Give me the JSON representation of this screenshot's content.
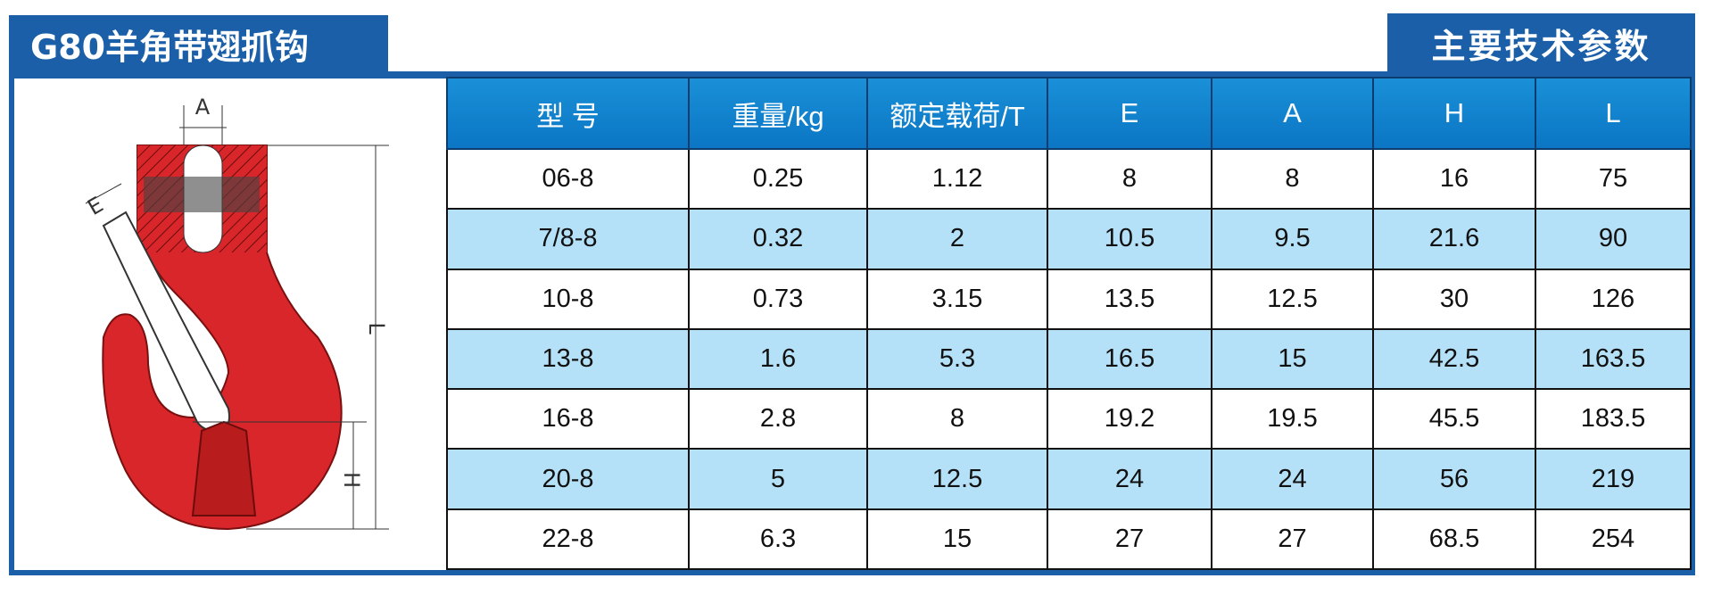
{
  "header": {
    "title": "G80羊角带翅抓钩",
    "section": "主要技术参数"
  },
  "diagram": {
    "labels": [
      "A",
      "E",
      "L",
      "H"
    ]
  },
  "table": {
    "columns": [
      "型 号",
      "重量/kg",
      "额定载荷/T",
      "E",
      "A",
      "H",
      "L"
    ],
    "rows": [
      [
        "06-8",
        "0.25",
        "1.12",
        "8",
        "8",
        "16",
        "75"
      ],
      [
        "7/8-8",
        "0.32",
        "2",
        "10.5",
        "9.5",
        "21.6",
        "90"
      ],
      [
        "10-8",
        "0.73",
        "3.15",
        "13.5",
        "12.5",
        "30",
        "126"
      ],
      [
        "13-8",
        "1.6",
        "5.3",
        "16.5",
        "15",
        "42.5",
        "163.5"
      ],
      [
        "16-8",
        "2.8",
        "8",
        "19.2",
        "19.5",
        "45.5",
        "183.5"
      ],
      [
        "20-8",
        "5",
        "12.5",
        "24",
        "24",
        "56",
        "219"
      ],
      [
        "22-8",
        "6.3",
        "15",
        "27",
        "27",
        "68.5",
        "254"
      ]
    ]
  }
}
